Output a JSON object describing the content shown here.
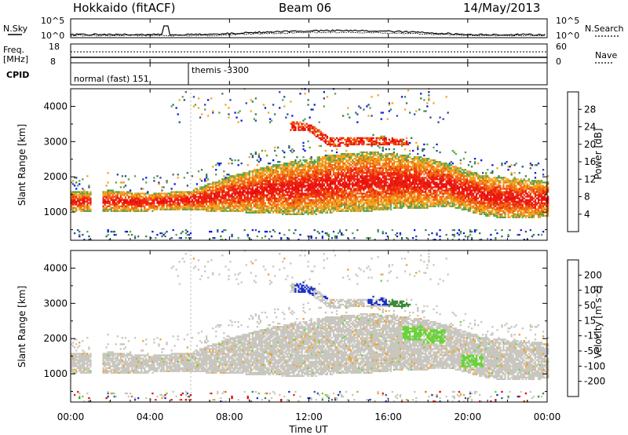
{
  "header": {
    "station": "Hokkaido (fitACF)",
    "beam": "Beam 06",
    "date": "14/May/2013"
  },
  "noise_panel": {
    "left_label": "N.Sky",
    "right_label": "N.Search",
    "left_ticks": [
      "10^5",
      "10^0"
    ],
    "right_ticks": [
      "10^5",
      "10^0"
    ]
  },
  "freq_panel": {
    "left_label_1": "Freq.",
    "left_label_2": "[MHz]",
    "right_label": "Nave",
    "left_ticks": [
      "18",
      "8"
    ],
    "right_ticks": [
      "60",
      "0"
    ]
  },
  "cpid_panel": {
    "label": "CPID",
    "segments": [
      "normal (fast) 151",
      "themis -3300"
    ]
  },
  "axes": {
    "ylabel": "Slant Range [km]",
    "xlabel": "Time UT",
    "y_ticks": [
      "1000",
      "2000",
      "3000",
      "4000"
    ],
    "x_ticks": [
      "00:00",
      "04:00",
      "08:00",
      "12:00",
      "16:00",
      "20:00",
      "00:00"
    ]
  },
  "power_colorbar": {
    "label": "Power [dB]",
    "ticks": [
      "4",
      "8",
      "12",
      "16",
      "20",
      "24",
      "28"
    ],
    "colors": [
      "#0a14e6",
      "#2a46a0",
      "#3a7a56",
      "#58a34a",
      "#f2a420",
      "#f06a12",
      "#ee2410",
      "#e80e0e"
    ]
  },
  "velocity_colorbar": {
    "label": "Velocity [m s⁻¹]",
    "ticks": [
      "200",
      "100",
      "50",
      "15",
      "-15",
      "-50",
      "-100",
      "-200"
    ],
    "colors": [
      "#1a2ec8",
      "#2a5aa0",
      "#3a8a3a",
      "#6ad23a",
      "#c8c6be",
      "#f0a020",
      "#f06a12",
      "#e81a0a",
      "#e00000"
    ]
  },
  "chart_data": [
    {
      "type": "heatmap",
      "title": "Power",
      "xlabel": "Time UT",
      "ylabel": "Slant Range [km]",
      "xlim": [
        0,
        24
      ],
      "ylim": [
        200,
        4500
      ],
      "colorbar_range": [
        0,
        30
      ],
      "units": "dB",
      "echo_band": {
        "hours": [
          0,
          1,
          2,
          3,
          4,
          5,
          6,
          7,
          8,
          9,
          10,
          11,
          12,
          13,
          14,
          15,
          16,
          17,
          18,
          19,
          20,
          21,
          22,
          23,
          24
        ],
        "lower_km": [
          1000,
          1000,
          1000,
          1000,
          1000,
          1050,
          1050,
          1000,
          1000,
          950,
          950,
          900,
          900,
          950,
          1000,
          1000,
          1050,
          1100,
          1100,
          1150,
          1000,
          850,
          800,
          800,
          850
        ],
        "upper_km": [
          1550,
          1550,
          1600,
          1550,
          1500,
          1550,
          1600,
          1800,
          2000,
          2150,
          2300,
          2400,
          2500,
          2600,
          2650,
          2700,
          2650,
          2600,
          2500,
          2350,
          2150,
          2000,
          1950,
          1900,
          1850
        ]
      },
      "upper_band": {
        "hours": [
          11,
          12,
          13,
          14,
          15,
          16,
          17
        ],
        "lower_km": [
          3300,
          3250,
          2850,
          2850,
          2900,
          2900,
          2900
        ],
        "upper_km": [
          3550,
          3500,
          3100,
          3100,
          3100,
          3100,
          3000
        ]
      },
      "data_gap_hours": [
        1.0,
        1.6
      ]
    },
    {
      "type": "heatmap",
      "title": "Velocity",
      "xlabel": "Time UT",
      "ylabel": "Slant Range [km]",
      "xlim": [
        0,
        24
      ],
      "ylim": [
        200,
        4500
      ],
      "colorbar_range": [
        -200,
        200
      ],
      "units": "m s-1",
      "dominant_velocity": 0,
      "positive_patches": [
        {
          "hour": 11.8,
          "range_km": 3400,
          "velocity": 200
        },
        {
          "hour": 13.2,
          "range_km": 3300,
          "velocity": 200
        },
        {
          "hour": 15.5,
          "range_km": 3100,
          "velocity": 200
        },
        {
          "hour": 16.5,
          "range_km": 3050,
          "velocity": 50
        },
        {
          "hour": 17.2,
          "range_km": 2150,
          "velocity": 40
        },
        {
          "hour": 18.3,
          "range_km": 2050,
          "velocity": 40
        },
        {
          "hour": 20.2,
          "range_km": 1350,
          "velocity": 40
        }
      ]
    }
  ]
}
